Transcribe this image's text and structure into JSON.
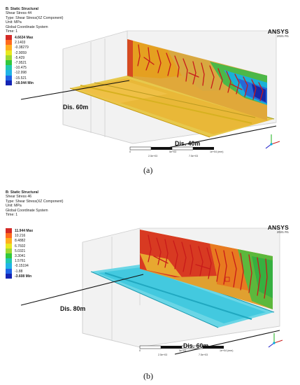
{
  "panel_a": {
    "info": {
      "title": "B: Static Structural",
      "name": "Shear Stress 44",
      "type": "Type: Shear Stress(XZ Component)",
      "unit": "Unit: MPa",
      "system": "Global Coordinate System",
      "time": "Time: 1"
    },
    "legend": [
      {
        "label": "4.6634 Max",
        "color": "#d42a26"
      },
      {
        "label": "2.1403",
        "color": "#ff6a1e"
      },
      {
        "label": "-0.38279",
        "color": "#ffae1e"
      },
      {
        "label": "-2.9059",
        "color": "#e8e820"
      },
      {
        "label": "-5.429",
        "color": "#9ed832"
      },
      {
        "label": "-7.9521",
        "color": "#32c83c"
      },
      {
        "label": "-10.475",
        "color": "#20c8b0"
      },
      {
        "label": "-12.998",
        "color": "#20b4e6"
      },
      {
        "label": "-15.521",
        "color": "#2064e6"
      },
      {
        "label": "-18.044 Min",
        "color": "#1424b4"
      }
    ],
    "logo": "ANSYS",
    "version": "2021 R1",
    "dis_near": "Dis. 60m",
    "dis_far": "Dis. 40m",
    "scale_labels": [
      "0",
      "5e+03",
      "1e+04 (mm)",
      "2.5e+03",
      "7.5e+03"
    ],
    "caption": "(a)"
  },
  "panel_b": {
    "info": {
      "title": "B: Static Structural",
      "name": "Shear Stress 46",
      "type": "Type: Shear Stress(XZ Component)",
      "unit": "Unit: MPa",
      "system": "Global Coordinate System",
      "time": "Time: 1"
    },
    "legend": [
      {
        "label": "11.944 Max",
        "color": "#d42a26"
      },
      {
        "label": "10.216",
        "color": "#ff6a1e"
      },
      {
        "label": "8.4882",
        "color": "#ffae1e"
      },
      {
        "label": "6.7602",
        "color": "#e8e820"
      },
      {
        "label": "5.0321",
        "color": "#9ed832"
      },
      {
        "label": "3.3041",
        "color": "#32c83c"
      },
      {
        "label": "1.5761",
        "color": "#20c8b0"
      },
      {
        "label": "-0.15194",
        "color": "#20b4e6"
      },
      {
        "label": "-1.88",
        "color": "#2064e6"
      },
      {
        "label": "-3.608 Min",
        "color": "#1424b4"
      }
    ],
    "logo": "ANSYS",
    "version": "2021 R1",
    "dis_near": "Dis. 80m",
    "dis_far": "Dis. 60m",
    "scale_labels": [
      "0",
      "5e+03",
      "1e+04 (mm)",
      "2.5e+03",
      "7.5e+03"
    ],
    "caption": "(b)"
  }
}
